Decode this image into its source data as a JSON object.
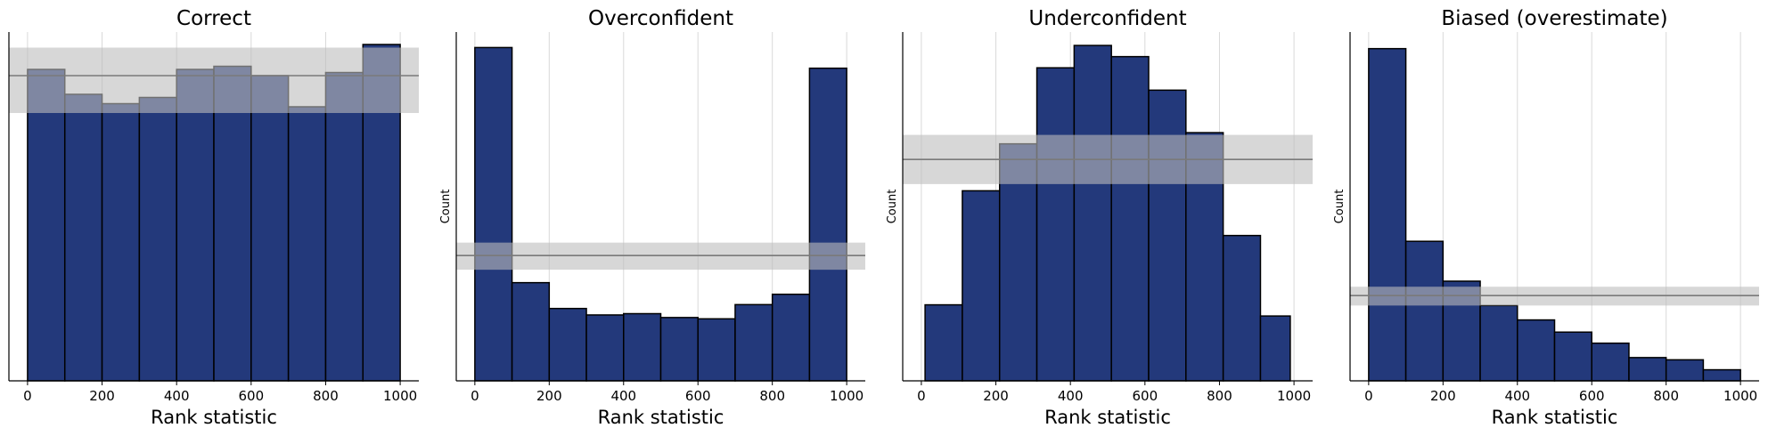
{
  "chart_data": [
    {
      "type": "bar",
      "title": "Correct",
      "xlabel": "Rank statistic",
      "ylabel": "",
      "xlim": [
        -50,
        1050
      ],
      "ylim": [
        0,
        112
      ],
      "xticks": [
        0,
        200,
        400,
        600,
        800,
        1000
      ],
      "bin_edges": [
        0,
        100,
        200,
        300,
        400,
        500,
        600,
        700,
        800,
        900,
        1000
      ],
      "values": [
        100,
        92,
        89,
        91,
        100,
        101,
        98,
        88,
        99,
        108
      ],
      "reference": {
        "mean": 98,
        "lower": 86,
        "upper": 107
      },
      "grid": "x"
    },
    {
      "type": "bar",
      "title": "Overconfident",
      "xlabel": "Rank statistic",
      "ylabel": "Count",
      "xlim": [
        -50,
        1050
      ],
      "ylim": [
        0,
        270
      ],
      "xticks": [
        0,
        200,
        400,
        600,
        800,
        1000
      ],
      "bin_edges": [
        0,
        100,
        200,
        300,
        400,
        500,
        600,
        700,
        800,
        900,
        1000
      ],
      "values": [
        258,
        76,
        56,
        51,
        52,
        49,
        48,
        59,
        67,
        242
      ],
      "reference": {
        "mean": 97,
        "lower": 86,
        "upper": 107
      },
      "grid": "x"
    },
    {
      "type": "bar",
      "title": "Underconfident",
      "xlabel": "Rank statistic",
      "ylabel": "Count",
      "xlim": [
        -50,
        1050
      ],
      "ylim": [
        0,
        156
      ],
      "xticks": [
        0,
        200,
        400,
        600,
        800,
        1000
      ],
      "bin_edges": [
        10,
        110,
        210,
        310,
        410,
        510,
        610,
        710,
        810,
        910,
        990
      ],
      "values": [
        34,
        85,
        106,
        140,
        150,
        145,
        130,
        111,
        65,
        29
      ],
      "reference": {
        "mean": 99,
        "lower": 88,
        "upper": 110
      },
      "grid": "x"
    },
    {
      "type": "bar",
      "title": "Biased (overestimate)",
      "xlabel": "Rank statistic",
      "ylabel": "Count",
      "xlim": [
        -50,
        1050
      ],
      "ylim": [
        0,
        315
      ],
      "xticks": [
        0,
        200,
        400,
        600,
        800,
        1000
      ],
      "bin_edges": [
        0,
        100,
        200,
        300,
        400,
        500,
        600,
        700,
        800,
        900,
        1000
      ],
      "values": [
        300,
        126,
        90,
        68,
        55,
        44,
        34,
        21,
        19,
        10
      ],
      "reference": {
        "mean": 77,
        "lower": 68,
        "upper": 85
      },
      "grid": "x"
    }
  ],
  "colors": {
    "bar": "#1f3578",
    "bar_edge": "#000000",
    "band": "#bdbdbd",
    "mean_line": "#7a7a7a",
    "grid": "#d9d9d9"
  }
}
